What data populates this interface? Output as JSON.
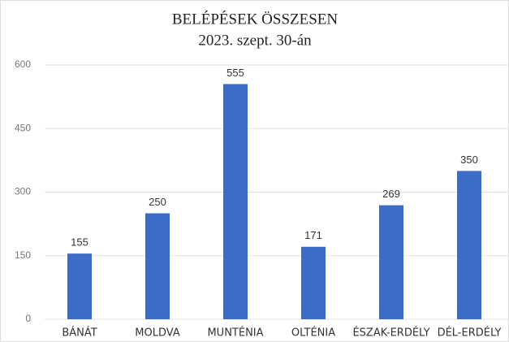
{
  "chart_data": {
    "type": "bar",
    "title": "BELÉPÉSEK ÖSSZESEN",
    "subtitle": "2023. szept. 30-án",
    "categories": [
      "BÁNÁT",
      "MOLDVA",
      "MUNTÉNIA",
      "OLTÉNIA",
      "ÉSZAK-ERDÉLY",
      "DÉL-ERDÉLY"
    ],
    "values": [
      155,
      250,
      555,
      171,
      269,
      350
    ],
    "color": "#3d6cc6",
    "ylim": [
      0,
      600
    ],
    "yticks": [
      0,
      150,
      300,
      450,
      600
    ],
    "grid": true
  }
}
